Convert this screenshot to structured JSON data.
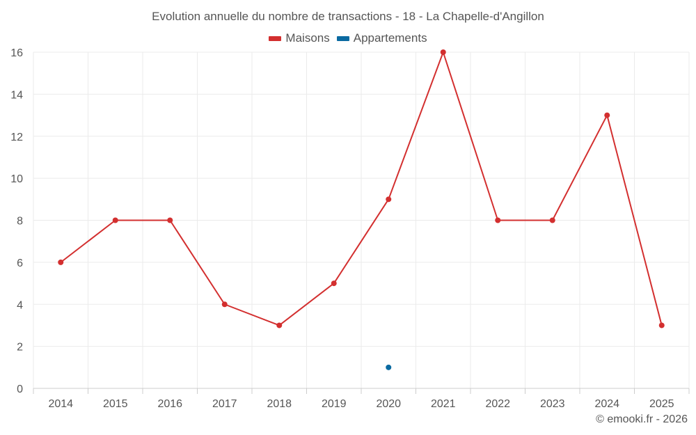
{
  "chart_data": {
    "type": "line",
    "title": "Evolution annuelle du nombre de transactions - 18 - La Chapelle-d'Angillon",
    "categories": [
      "2014",
      "2015",
      "2016",
      "2017",
      "2018",
      "2019",
      "2020",
      "2021",
      "2022",
      "2023",
      "2024",
      "2025"
    ],
    "series": [
      {
        "name": "Maisons",
        "color": "#d32f2f",
        "values": [
          6,
          8,
          8,
          4,
          3,
          5,
          9,
          16,
          8,
          8,
          13,
          3
        ]
      },
      {
        "name": "Appartements",
        "color": "#0a6aa1",
        "values": [
          null,
          null,
          null,
          null,
          null,
          null,
          1,
          null,
          null,
          null,
          null,
          null
        ]
      }
    ],
    "ylim": [
      0,
      16
    ],
    "yticks": [
      0,
      2,
      4,
      6,
      8,
      10,
      12,
      14,
      16
    ],
    "xlabel": "",
    "ylabel": "",
    "grid": true,
    "legend_position": "top-center"
  },
  "credit": "© emooki.fr - 2026"
}
